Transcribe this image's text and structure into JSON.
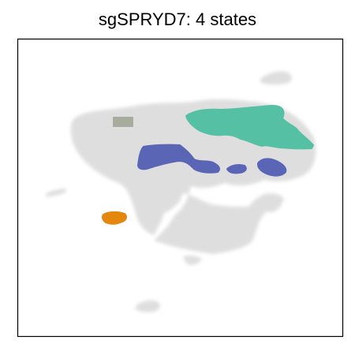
{
  "chart_data": {
    "type": "scatter",
    "title": "sgSPRYD7: 4 states",
    "xlabel": "",
    "ylabel": "",
    "grid": false,
    "legend": "none",
    "axes_ticks": false,
    "background_cells_color": "#d9d9d9",
    "states": [
      {
        "color": "#55c0a4"
      },
      {
        "color": "#5a65b5"
      },
      {
        "color": "#a6ad9c"
      },
      {
        "color": "#e3870e"
      }
    ]
  }
}
